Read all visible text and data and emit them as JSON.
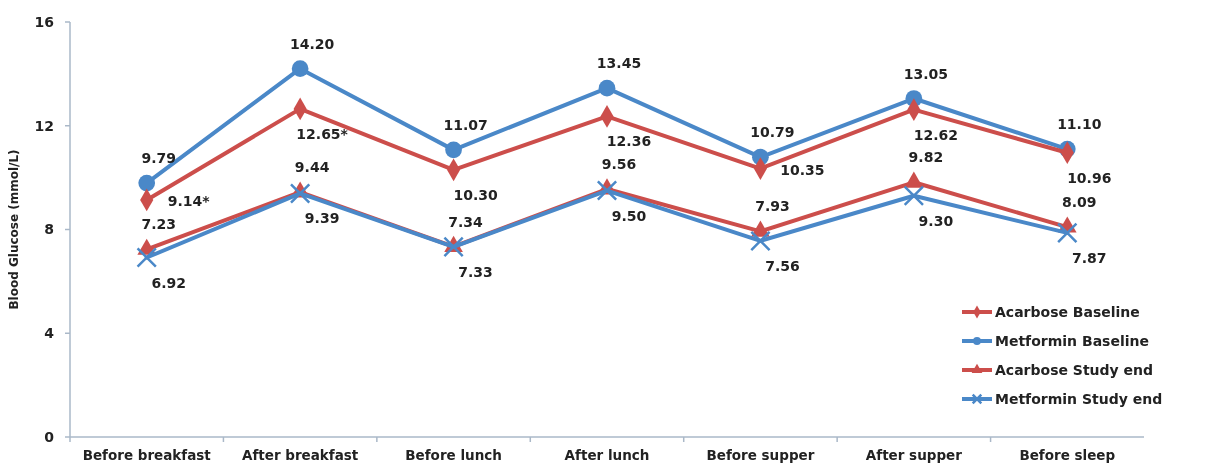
{
  "chart_data": {
    "type": "line",
    "ylabel": "Blood Glucose (mmol/L)",
    "categories": [
      "Before breakfast",
      "After breakfast",
      "Before lunch",
      "After lunch",
      "Before supper",
      "After supper",
      "Before sleep"
    ],
    "ylim": [
      0,
      16
    ],
    "yticks": [
      0,
      4,
      8,
      12,
      16
    ],
    "grid": false,
    "legend": "bottom right",
    "line_style": "solid",
    "series": [
      {
        "name": "Acarbose Baseline",
        "color": "#cc4e4b",
        "marker": "diamond",
        "values": [
          9.14,
          12.65,
          10.3,
          12.36,
          10.35,
          12.62,
          10.96
        ],
        "value_labels": [
          "9.14*",
          "12.65*",
          "10.30",
          "12.36",
          "10.35",
          "12.62",
          "10.96"
        ]
      },
      {
        "name": "Metformin Baseline",
        "color": "#4a88c8",
        "marker": "circle",
        "values": [
          9.79,
          14.2,
          11.07,
          13.45,
          10.79,
          13.05,
          11.1
        ],
        "value_labels": [
          "9.79",
          "14.20",
          "11.07",
          "13.45",
          "10.79",
          "13.05",
          "11.10"
        ]
      },
      {
        "name": "Acarbose Study end",
        "color": "#cc4e4b",
        "marker": "triangle",
        "values": [
          7.23,
          9.44,
          7.34,
          9.56,
          7.93,
          9.82,
          8.09
        ],
        "value_labels": [
          "7.23",
          "9.44",
          "7.34",
          "9.56",
          "7.93",
          "9.82",
          "8.09"
        ]
      },
      {
        "name": "Metformin Study end",
        "color": "#4a88c8",
        "marker": "cross",
        "values": [
          6.92,
          9.39,
          7.33,
          9.5,
          7.56,
          9.3,
          7.87
        ],
        "value_labels": [
          "6.92",
          "9.39",
          "7.33",
          "9.50",
          "7.56",
          "9.30",
          "7.87"
        ]
      }
    ]
  }
}
